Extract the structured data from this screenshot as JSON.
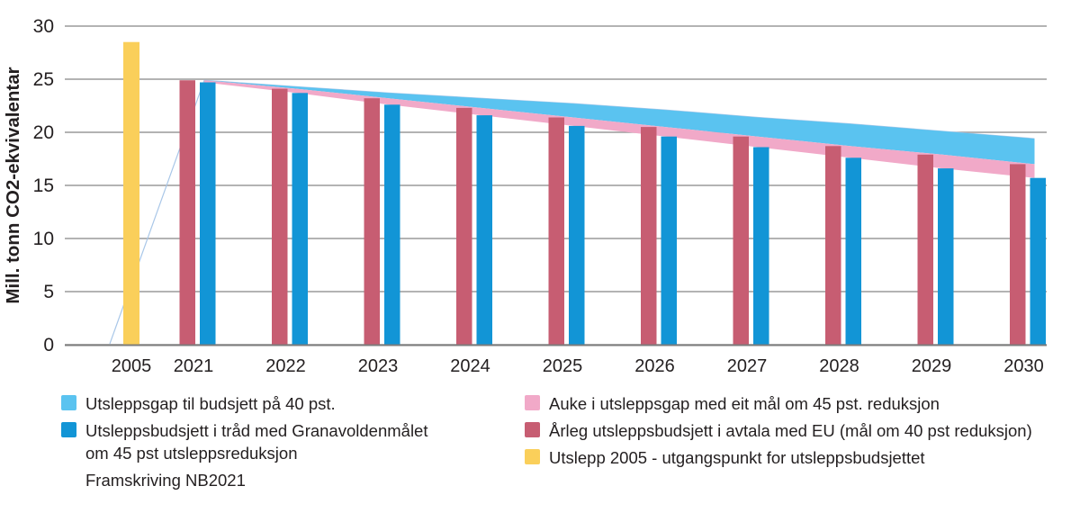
{
  "colors": {
    "gap_40": "#5AC3F0",
    "budget_45": "#1295D6",
    "gap_45": "#F1A9C8",
    "budget_40": "#C75D72",
    "emissions_2005": "#FACF5A",
    "projection_line": "#A9C7E8",
    "grid": "#9A9A9A",
    "axis": "#7C7C7C",
    "text": "#231F20"
  },
  "chart_data": {
    "type": "bar",
    "categories": [
      "2005",
      "2021",
      "2022",
      "2023",
      "2024",
      "2025",
      "2026",
      "2027",
      "2028",
      "2029",
      "2030"
    ],
    "ylabel": "Mill. tonn CO2-ekvivalentar",
    "ylim": [
      0,
      30
    ],
    "yticks": [
      0,
      5,
      10,
      15,
      20,
      25,
      30
    ],
    "grid": "horizontal",
    "legend_position": "bottom",
    "series": [
      {
        "name": "Utslepp 2005 - utgangspunkt for utsleppsbudsjettet",
        "role": "emissions-2005",
        "type": "bar",
        "color": "#FACF5A",
        "values": [
          28.5,
          null,
          null,
          null,
          null,
          null,
          null,
          null,
          null,
          null,
          null
        ]
      },
      {
        "name": "Årleg utsleppsbudsjett i avtala med EU (mål om 40 pst reduksjon)",
        "role": "budget-40",
        "type": "bar",
        "color": "#C75D72",
        "values": [
          null,
          24.9,
          24.1,
          23.2,
          22.3,
          21.4,
          20.5,
          19.6,
          18.7,
          17.9,
          17.0
        ]
      },
      {
        "name": "Utsleppsbudsjett i tråd med Granavoldenmålet om 45 pst utsleppsreduksjon",
        "role": "budget-45",
        "type": "bar",
        "color": "#1295D6",
        "values": [
          null,
          24.7,
          23.7,
          22.6,
          21.6,
          20.6,
          19.6,
          18.6,
          17.6,
          16.6,
          15.7
        ]
      },
      {
        "name": "Framskriving NB2021",
        "role": "projection",
        "type": "line",
        "color": "#A9C7E8",
        "values": [
          null,
          24.9,
          24.3,
          23.7,
          23.2,
          22.7,
          22.1,
          21.4,
          20.8,
          20.1,
          19.4
        ]
      },
      {
        "name": "Utsleppsgap til budsjett på 40 pst.",
        "role": "gap-40",
        "type": "area",
        "color": "#5AC3F0",
        "upper": "projection",
        "lower": "budget-40"
      },
      {
        "name": "Auke i utsleppsgap med eit mål om 45 pst. reduksjon",
        "role": "gap-45",
        "type": "area",
        "color": "#F1A9C8",
        "upper": "budget-40",
        "lower": "budget-45"
      }
    ]
  },
  "legend": {
    "left": [
      {
        "swatch_color": "#5AC3F0",
        "label": "Utsleppsgap til budsjett på 40 pst."
      },
      {
        "swatch_color": "#1295D6",
        "label": "Utsleppsbudsjett i tråd med Granavoldenmålet\nom 45 pst utsleppsreduksjon"
      },
      {
        "swatch_color": null,
        "label": "Framskriving NB2021"
      }
    ],
    "right": [
      {
        "swatch_color": "#F1A9C8",
        "label": "Auke i utsleppsgap med eit mål om 45 pst. reduksjon"
      },
      {
        "swatch_color": "#C75D72",
        "label": "Årleg utsleppsbudsjett i avtala med EU (mål om 40 pst reduksjon)"
      },
      {
        "swatch_color": "#FACF5A",
        "label": "Utslepp 2005 - utgangspunkt for utsleppsbudsjettet"
      }
    ]
  }
}
